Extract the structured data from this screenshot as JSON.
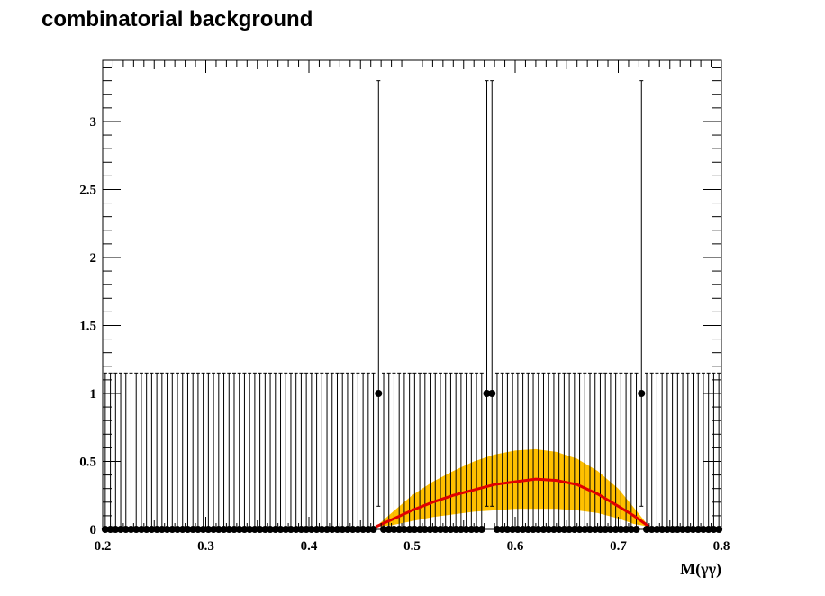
{
  "chart_data": {
    "type": "scatter",
    "title": "combinatorial background",
    "xlabel": "M(γγ)",
    "ylabel": "",
    "xlim": [
      0.2,
      0.8
    ],
    "ylim": [
      0,
      3.45
    ],
    "x_ticks": [
      "0.2",
      "0.3",
      "0.4",
      "0.5",
      "0.6",
      "0.7",
      "0.8"
    ],
    "y_ticks": [
      "0",
      "0.5",
      "1",
      "1.5",
      "2",
      "2.5",
      "3"
    ],
    "bins": {
      "count": 120,
      "x_min": 0.2,
      "x_max": 0.8
    },
    "zero_error_upper": 1.15,
    "one_error_upper": 3.3,
    "one_error_lower": 0.17,
    "nonzero_points": [
      {
        "x": 0.4675,
        "y": 1
      },
      {
        "x": 0.5725,
        "y": 1
      },
      {
        "x": 0.5775,
        "y": 1
      },
      {
        "x": 0.7225,
        "y": 1
      }
    ],
    "fit_curve": {
      "x": [
        0.465,
        0.48,
        0.5,
        0.52,
        0.54,
        0.56,
        0.58,
        0.6,
        0.62,
        0.64,
        0.66,
        0.68,
        0.7,
        0.715,
        0.73
      ],
      "y": [
        0.02,
        0.07,
        0.14,
        0.2,
        0.25,
        0.29,
        0.33,
        0.35,
        0.37,
        0.36,
        0.33,
        0.26,
        0.17,
        0.1,
        0.02
      ],
      "color": "#e00000"
    },
    "error_band": {
      "upper": [
        0.02,
        0.12,
        0.25,
        0.35,
        0.43,
        0.5,
        0.55,
        0.58,
        0.59,
        0.57,
        0.52,
        0.43,
        0.3,
        0.16,
        0.02
      ],
      "lower": [
        0.02,
        0.03,
        0.06,
        0.09,
        0.11,
        0.13,
        0.14,
        0.15,
        0.15,
        0.15,
        0.14,
        0.12,
        0.08,
        0.04,
        0.02
      ],
      "color": "#ffc000"
    },
    "marker_color": "#000000",
    "grid": false,
    "legend": "none"
  }
}
